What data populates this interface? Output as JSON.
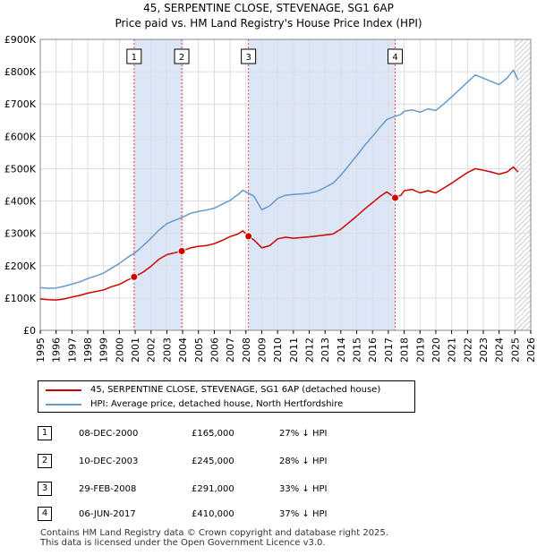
{
  "title_line1": "45, SERPENTINE CLOSE, STEVENAGE, SG1 6AP",
  "title_line2": "Price paid vs. HM Land Registry's House Price Index (HPI)",
  "colors": {
    "property": "#cc0000",
    "hpi": "#6699cc",
    "shade": "#dde6f7",
    "vline": "#ee4444",
    "grid": "#dddddd"
  },
  "chart_data": {
    "type": "line",
    "x_range": [
      1995,
      2026
    ],
    "ylim": [
      0,
      900000
    ],
    "y_ticks": [
      {
        "value": 0,
        "label": "£0"
      },
      {
        "value": 100000,
        "label": "£100K"
      },
      {
        "value": 200000,
        "label": "£200K"
      },
      {
        "value": 300000,
        "label": "£300K"
      },
      {
        "value": 400000,
        "label": "£400K"
      },
      {
        "value": 500000,
        "label": "£500K"
      },
      {
        "value": 600000,
        "label": "£600K"
      },
      {
        "value": 700000,
        "label": "£700K"
      },
      {
        "value": 800000,
        "label": "£800K"
      },
      {
        "value": 900000,
        "label": "£900K"
      }
    ],
    "x_ticks": [
      "1995",
      "1996",
      "1997",
      "1998",
      "1999",
      "2000",
      "2001",
      "2002",
      "2003",
      "2004",
      "2005",
      "2006",
      "2007",
      "2008",
      "2009",
      "2010",
      "2011",
      "2012",
      "2013",
      "2014",
      "2015",
      "2016",
      "2017",
      "2018",
      "2019",
      "2020",
      "2021",
      "2022",
      "2023",
      "2024",
      "2025",
      "2026"
    ],
    "shaded_periods": [
      [
        2000.93,
        2003.94
      ],
      [
        2008.16,
        2017.43
      ]
    ],
    "hatched_from": 2025.0,
    "series": [
      {
        "name": "45, SERPENTINE CLOSE, STEVENAGE, SG1 6AP (detached house)",
        "color": "#cc0000",
        "points": [
          [
            1995.0,
            97000
          ],
          [
            1995.5,
            95000
          ],
          [
            1996.0,
            94000
          ],
          [
            1996.5,
            97000
          ],
          [
            1997.0,
            103000
          ],
          [
            1997.5,
            108000
          ],
          [
            1998.0,
            115000
          ],
          [
            1998.5,
            120000
          ],
          [
            1999.0,
            125000
          ],
          [
            1999.5,
            135000
          ],
          [
            2000.0,
            142000
          ],
          [
            2000.5,
            155000
          ],
          [
            2000.93,
            165000
          ],
          [
            2001.5,
            180000
          ],
          [
            2002.0,
            198000
          ],
          [
            2002.5,
            220000
          ],
          [
            2003.0,
            234000
          ],
          [
            2003.5,
            240000
          ],
          [
            2003.94,
            245000
          ],
          [
            2004.5,
            255000
          ],
          [
            2005.0,
            260000
          ],
          [
            2005.5,
            262000
          ],
          [
            2006.0,
            268000
          ],
          [
            2006.5,
            278000
          ],
          [
            2007.0,
            290000
          ],
          [
            2007.5,
            298000
          ],
          [
            2007.8,
            308000
          ],
          [
            2008.16,
            291000
          ],
          [
            2008.5,
            280000
          ],
          [
            2009.0,
            255000
          ],
          [
            2009.5,
            262000
          ],
          [
            2010.0,
            283000
          ],
          [
            2010.5,
            288000
          ],
          [
            2011.0,
            285000
          ],
          [
            2011.5,
            287000
          ],
          [
            2012.0,
            289000
          ],
          [
            2012.5,
            292000
          ],
          [
            2013.0,
            295000
          ],
          [
            2013.5,
            298000
          ],
          [
            2014.0,
            313000
          ],
          [
            2014.5,
            333000
          ],
          [
            2015.0,
            353000
          ],
          [
            2015.5,
            375000
          ],
          [
            2016.0,
            395000
          ],
          [
            2016.5,
            415000
          ],
          [
            2016.9,
            428000
          ],
          [
            2017.43,
            410000
          ],
          [
            2017.8,
            418000
          ],
          [
            2018.0,
            432000
          ],
          [
            2018.5,
            436000
          ],
          [
            2019.0,
            425000
          ],
          [
            2019.5,
            432000
          ],
          [
            2020.0,
            425000
          ],
          [
            2020.5,
            440000
          ],
          [
            2021.0,
            455000
          ],
          [
            2021.5,
            472000
          ],
          [
            2022.0,
            488000
          ],
          [
            2022.5,
            500000
          ],
          [
            2023.0,
            495000
          ],
          [
            2023.5,
            490000
          ],
          [
            2024.0,
            483000
          ],
          [
            2024.5,
            490000
          ],
          [
            2024.9,
            505000
          ],
          [
            2025.2,
            490000
          ]
        ]
      },
      {
        "name": "HPI: Average price, detached house, North Hertfordshire",
        "color": "#6699cc",
        "points": [
          [
            1995.0,
            132000
          ],
          [
            1995.5,
            130000
          ],
          [
            1996.0,
            131000
          ],
          [
            1996.5,
            136000
          ],
          [
            1997.0,
            143000
          ],
          [
            1997.5,
            150000
          ],
          [
            1998.0,
            160000
          ],
          [
            1998.5,
            168000
          ],
          [
            1999.0,
            177000
          ],
          [
            1999.5,
            192000
          ],
          [
            2000.0,
            207000
          ],
          [
            2000.5,
            225000
          ],
          [
            2001.0,
            240000
          ],
          [
            2001.5,
            262000
          ],
          [
            2002.0,
            285000
          ],
          [
            2002.5,
            310000
          ],
          [
            2003.0,
            330000
          ],
          [
            2003.5,
            340000
          ],
          [
            2004.0,
            350000
          ],
          [
            2004.5,
            362000
          ],
          [
            2005.0,
            368000
          ],
          [
            2005.5,
            372000
          ],
          [
            2006.0,
            378000
          ],
          [
            2006.5,
            390000
          ],
          [
            2007.0,
            402000
          ],
          [
            2007.5,
            420000
          ],
          [
            2007.8,
            433000
          ],
          [
            2008.5,
            415000
          ],
          [
            2009.0,
            373000
          ],
          [
            2009.5,
            385000
          ],
          [
            2010.0,
            408000
          ],
          [
            2010.5,
            418000
          ],
          [
            2011.0,
            420000
          ],
          [
            2011.5,
            422000
          ],
          [
            2012.0,
            424000
          ],
          [
            2012.5,
            430000
          ],
          [
            2013.0,
            442000
          ],
          [
            2013.5,
            455000
          ],
          [
            2014.0,
            480000
          ],
          [
            2014.5,
            510000
          ],
          [
            2015.0,
            540000
          ],
          [
            2015.5,
            572000
          ],
          [
            2016.0,
            600000
          ],
          [
            2016.5,
            630000
          ],
          [
            2016.9,
            652000
          ],
          [
            2017.3,
            660000
          ],
          [
            2017.8,
            668000
          ],
          [
            2018.0,
            678000
          ],
          [
            2018.5,
            682000
          ],
          [
            2019.0,
            675000
          ],
          [
            2019.5,
            685000
          ],
          [
            2020.0,
            680000
          ],
          [
            2020.5,
            700000
          ],
          [
            2021.0,
            722000
          ],
          [
            2021.5,
            745000
          ],
          [
            2022.0,
            768000
          ],
          [
            2022.5,
            790000
          ],
          [
            2023.0,
            780000
          ],
          [
            2023.5,
            770000
          ],
          [
            2024.0,
            760000
          ],
          [
            2024.5,
            780000
          ],
          [
            2024.9,
            805000
          ],
          [
            2025.2,
            775000
          ]
        ]
      }
    ],
    "sale_markers": [
      {
        "label": "1",
        "x": 2000.93,
        "y": 165000
      },
      {
        "label": "2",
        "x": 2003.94,
        "y": 245000
      },
      {
        "label": "3",
        "x": 2008.16,
        "y": 291000
      },
      {
        "label": "4",
        "x": 2017.43,
        "y": 410000
      }
    ]
  },
  "legend": {
    "property": "45, SERPENTINE CLOSE, STEVENAGE, SG1 6AP (detached house)",
    "hpi": "HPI: Average price, detached house, North Hertfordshire"
  },
  "sales": [
    {
      "num": "1",
      "date": "08-DEC-2000",
      "price": "£165,000",
      "pct": "27% ↓ HPI"
    },
    {
      "num": "2",
      "date": "10-DEC-2003",
      "price": "£245,000",
      "pct": "28% ↓ HPI"
    },
    {
      "num": "3",
      "date": "29-FEB-2008",
      "price": "£291,000",
      "pct": "33% ↓ HPI"
    },
    {
      "num": "4",
      "date": "06-JUN-2017",
      "price": "£410,000",
      "pct": "37% ↓ HPI"
    }
  ],
  "footer_line1": "Contains HM Land Registry data © Crown copyright and database right 2025.",
  "footer_line2": "This data is licensed under the Open Government Licence v3.0."
}
